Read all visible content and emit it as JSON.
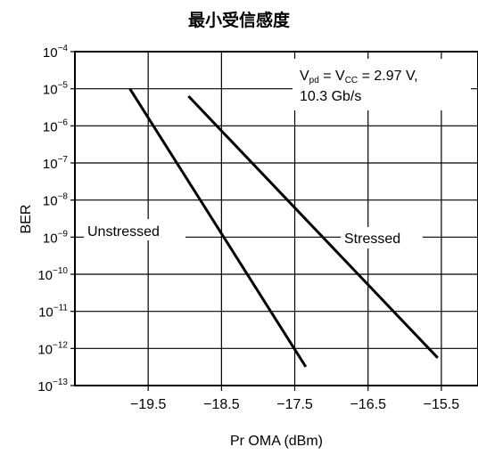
{
  "chart_data": {
    "type": "line",
    "title": "最小受信感度",
    "xlabel": "Pr OMA (dBm)",
    "ylabel": "BER",
    "xlim": [
      -20.5,
      -15.0
    ],
    "ylim": [
      -13,
      -4
    ],
    "y_scale": "log",
    "x_ticks": [
      -19.5,
      -18.5,
      -17.5,
      -16.5,
      -15.5
    ],
    "x_tick_labels": [
      "−19.5",
      "−18.5",
      "−17.5",
      "−16.5",
      "−15.5"
    ],
    "y_ticks": [
      {
        "base": "10",
        "exp": "−4"
      },
      {
        "base": "10",
        "exp": "−5"
      },
      {
        "base": "10",
        "exp": "−6"
      },
      {
        "base": "10",
        "exp": "−7"
      },
      {
        "base": "10",
        "exp": "−8"
      },
      {
        "base": "10",
        "exp": "−9"
      },
      {
        "base": "10",
        "exp": "−10"
      },
      {
        "base": "10",
        "exp": "−11"
      },
      {
        "base": "10",
        "exp": "−12"
      },
      {
        "base": "10",
        "exp": "−13"
      }
    ],
    "grid": true,
    "series": [
      {
        "name": "Unstressed",
        "points": [
          [
            -19.75,
            1e-05
          ],
          [
            -17.35,
            3.2e-13
          ]
        ]
      },
      {
        "name": "Stressed",
        "points": [
          [
            -18.95,
            6.3e-06
          ],
          [
            -15.55,
            5.6e-13
          ]
        ]
      }
    ],
    "annotation": {
      "line1": {
        "v": "V",
        "v_sub": "pd",
        "mid": " = V",
        "cc_sub": "CC",
        "rest": " = 2.97 V,"
      },
      "line2": "10.3 Gb/s"
    }
  }
}
